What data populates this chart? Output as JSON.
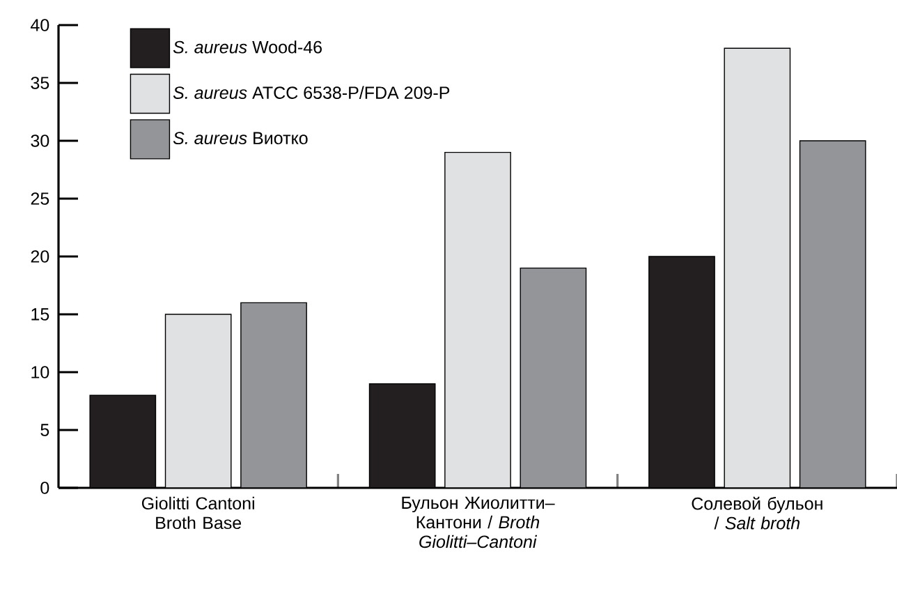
{
  "chart_data": {
    "type": "bar",
    "categories": [
      "Giolitti Cantoni Broth Base",
      "Бульон Жиолитти–Кантони / *Broth Giolitti–Cantoni*",
      "Солевой бульон / *Salt broth*"
    ],
    "series": [
      {
        "name": "*S. aureus* Wood-46",
        "color": "#231f20",
        "values": [
          8,
          9,
          20
        ]
      },
      {
        "name": "*S. aureus* ATCC 6538-P/FDA 209-P",
        "color": "#e0e1e3",
        "values": [
          15,
          29,
          38
        ]
      },
      {
        "name": "*S. aureus* Виотко",
        "color": "#939598",
        "values": [
          16,
          19,
          30
        ]
      }
    ],
    "ylim": [
      0,
      40
    ],
    "yticks": [
      0,
      5,
      10,
      15,
      20,
      25,
      30,
      35,
      40
    ],
    "legend": "top left",
    "grid": false
  }
}
